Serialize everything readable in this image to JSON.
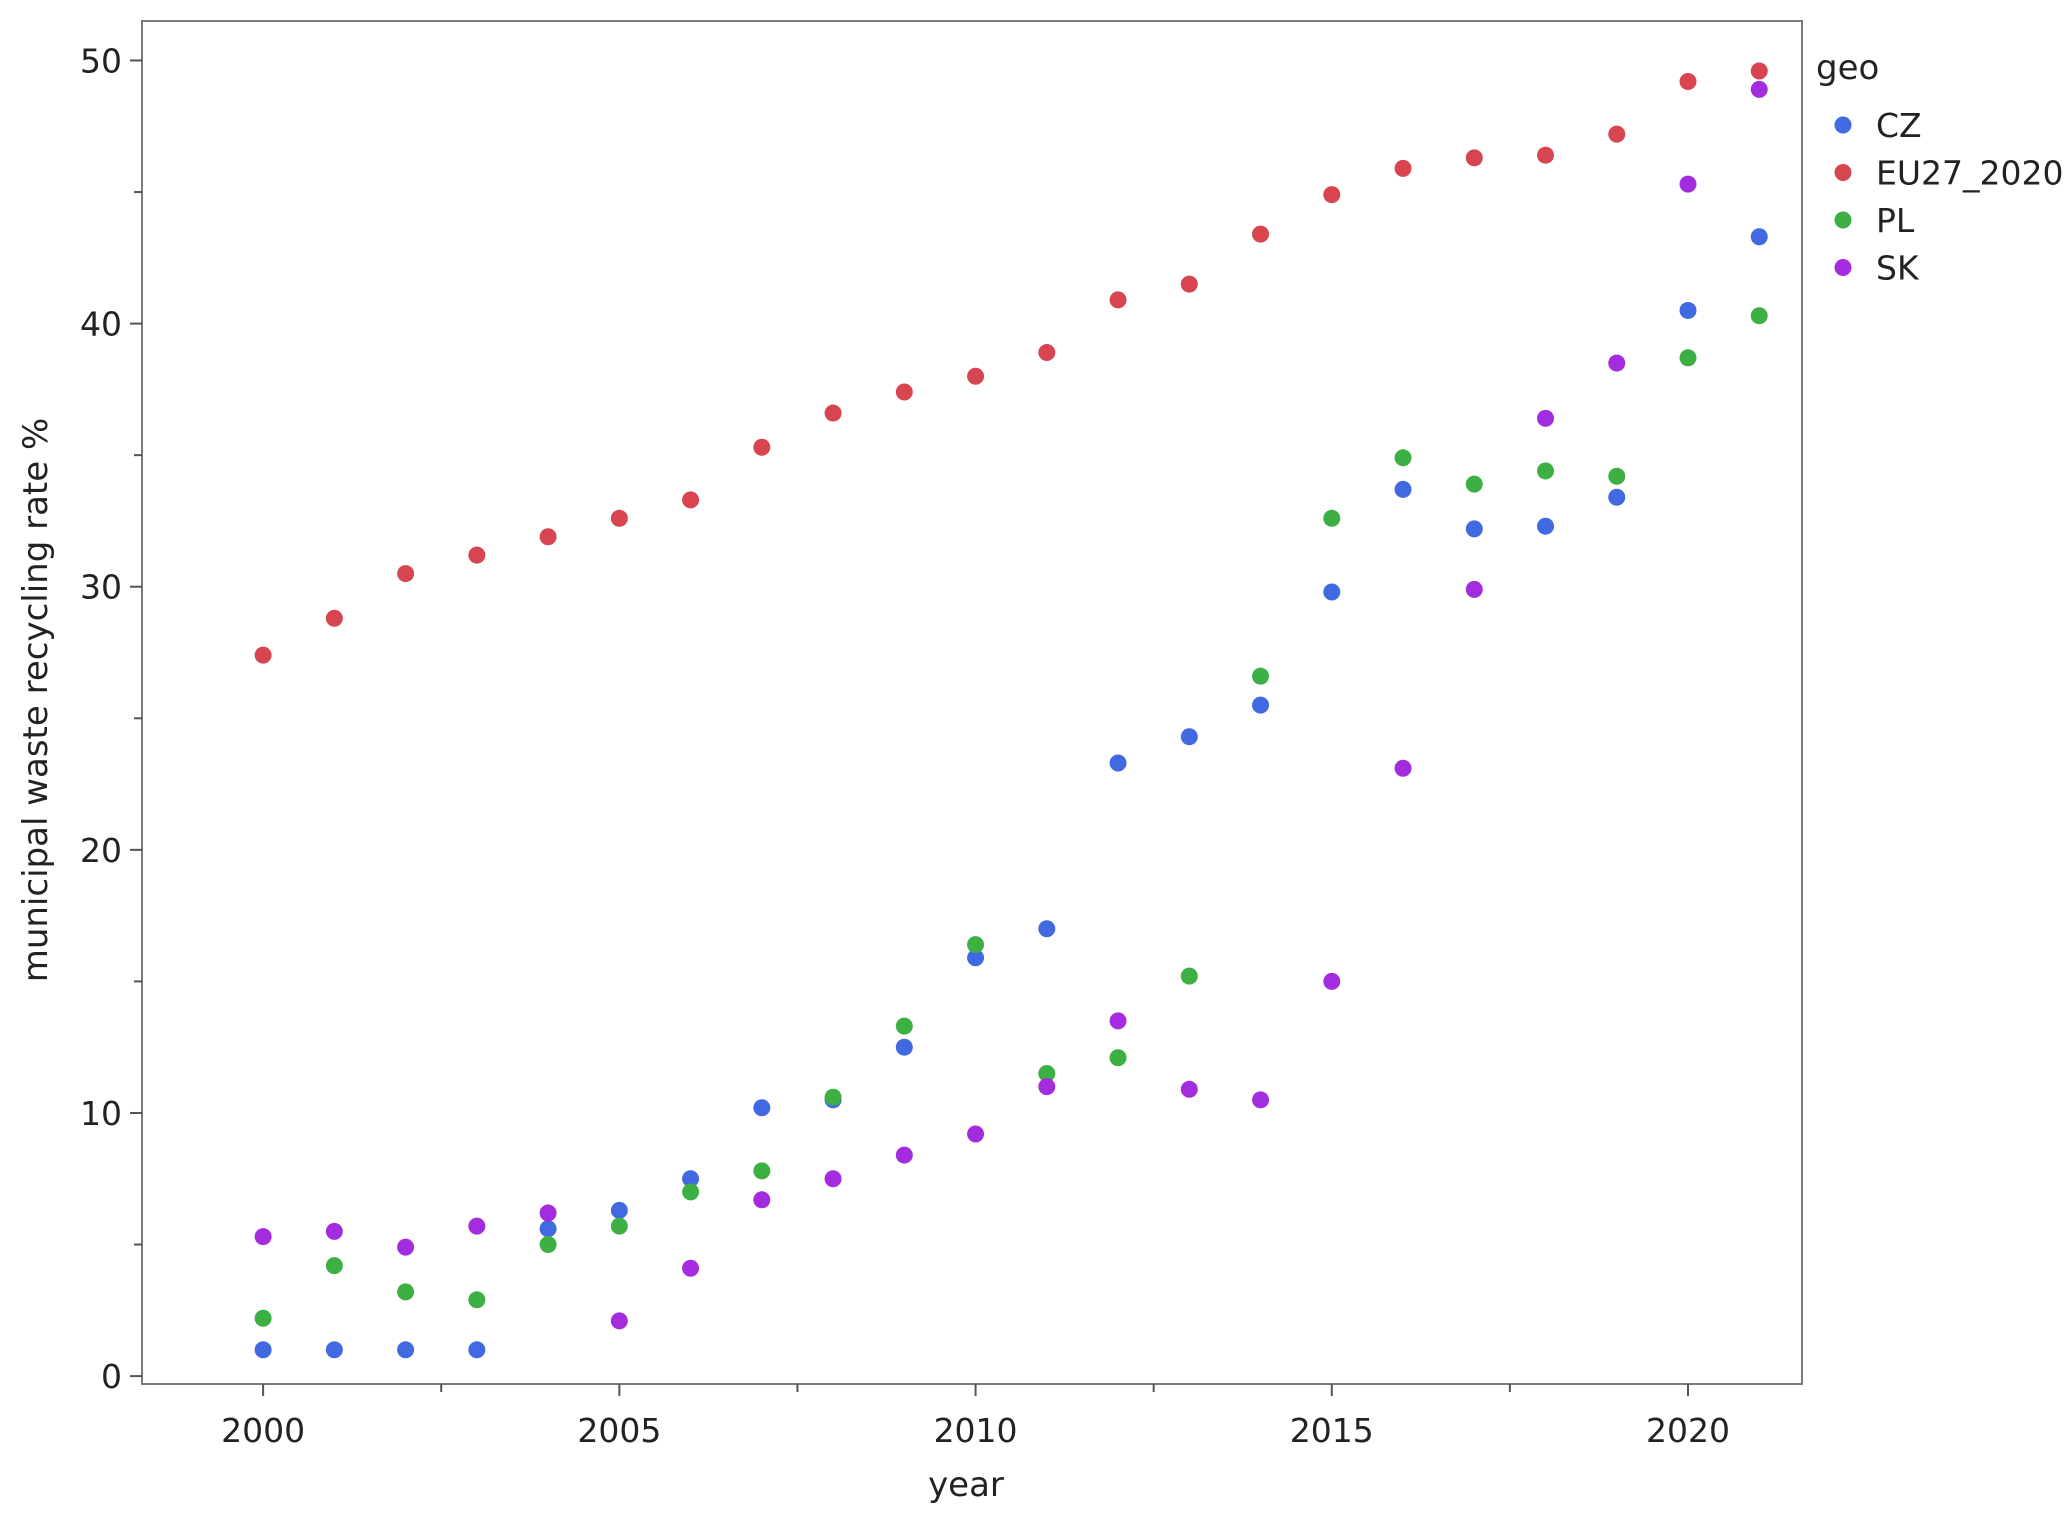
{
  "chart_data": {
    "type": "scatter",
    "title": "",
    "xlabel": "year",
    "ylabel": "municipal waste recycling rate %",
    "xlim": [
      1998.3,
      2021.6
    ],
    "ylim": [
      -0.3,
      51.5
    ],
    "x_ticks": [
      2000,
      2005,
      2010,
      2015,
      2020
    ],
    "x_minor_ticks": [
      2002.5,
      2007.5,
      2012.5,
      2017.5
    ],
    "y_ticks": [
      0,
      10,
      20,
      30,
      40,
      50
    ],
    "y_minor_ticks": [
      5,
      15,
      25,
      35,
      45
    ],
    "grid": false,
    "legend": {
      "title": "geo",
      "position": "right"
    },
    "series": [
      {
        "name": "CZ",
        "color": "#4169e1",
        "points": [
          [
            2000,
            1.0
          ],
          [
            2001,
            1.0
          ],
          [
            2002,
            1.0
          ],
          [
            2003,
            1.0
          ],
          [
            2004,
            5.6
          ],
          [
            2005,
            6.3
          ],
          [
            2006,
            7.5
          ],
          [
            2007,
            10.2
          ],
          [
            2008,
            10.5
          ],
          [
            2009,
            12.5
          ],
          [
            2010,
            15.9
          ],
          [
            2011,
            17.0
          ],
          [
            2012,
            23.3
          ],
          [
            2013,
            24.3
          ],
          [
            2014,
            25.5
          ],
          [
            2015,
            29.8
          ],
          [
            2016,
            33.7
          ],
          [
            2017,
            32.2
          ],
          [
            2018,
            32.3
          ],
          [
            2019,
            33.4
          ],
          [
            2020,
            40.5
          ],
          [
            2021,
            43.3
          ]
        ]
      },
      {
        "name": "EU27_2020",
        "color": "#d64550",
        "points": [
          [
            2000,
            27.4
          ],
          [
            2001,
            28.8
          ],
          [
            2002,
            30.5
          ],
          [
            2003,
            31.2
          ],
          [
            2004,
            31.9
          ],
          [
            2005,
            32.6
          ],
          [
            2006,
            33.3
          ],
          [
            2007,
            35.3
          ],
          [
            2008,
            36.6
          ],
          [
            2009,
            37.4
          ],
          [
            2010,
            38.0
          ],
          [
            2011,
            38.9
          ],
          [
            2012,
            40.9
          ],
          [
            2013,
            41.5
          ],
          [
            2014,
            43.4
          ],
          [
            2015,
            44.9
          ],
          [
            2016,
            45.9
          ],
          [
            2017,
            46.3
          ],
          [
            2018,
            46.4
          ],
          [
            2019,
            47.2
          ],
          [
            2020,
            49.2
          ],
          [
            2021,
            49.6
          ]
        ]
      },
      {
        "name": "PL",
        "color": "#3cb043",
        "points": [
          [
            2000,
            2.2
          ],
          [
            2001,
            4.2
          ],
          [
            2002,
            3.2
          ],
          [
            2003,
            2.9
          ],
          [
            2004,
            5.0
          ],
          [
            2005,
            5.7
          ],
          [
            2006,
            7.0
          ],
          [
            2007,
            7.8
          ],
          [
            2008,
            10.6
          ],
          [
            2009,
            13.3
          ],
          [
            2010,
            16.4
          ],
          [
            2011,
            11.5
          ],
          [
            2012,
            12.1
          ],
          [
            2013,
            15.2
          ],
          [
            2014,
            26.6
          ],
          [
            2015,
            32.6
          ],
          [
            2016,
            34.9
          ],
          [
            2017,
            33.9
          ],
          [
            2018,
            34.4
          ],
          [
            2019,
            34.2
          ],
          [
            2020,
            38.7
          ],
          [
            2021,
            40.3
          ]
        ]
      },
      {
        "name": "SK",
        "color": "#a32cde",
        "points": [
          [
            2000,
            5.3
          ],
          [
            2001,
            5.5
          ],
          [
            2002,
            4.9
          ],
          [
            2003,
            5.7
          ],
          [
            2004,
            6.2
          ],
          [
            2005,
            2.1
          ],
          [
            2006,
            4.1
          ],
          [
            2007,
            6.7
          ],
          [
            2008,
            7.5
          ],
          [
            2009,
            8.4
          ],
          [
            2010,
            9.2
          ],
          [
            2011,
            11.0
          ],
          [
            2012,
            13.5
          ],
          [
            2013,
            10.9
          ],
          [
            2014,
            10.5
          ],
          [
            2015,
            15.0
          ],
          [
            2016,
            23.1
          ],
          [
            2017,
            29.9
          ],
          [
            2018,
            36.4
          ],
          [
            2019,
            38.5
          ],
          [
            2020,
            45.3
          ],
          [
            2021,
            48.9
          ]
        ]
      }
    ]
  }
}
